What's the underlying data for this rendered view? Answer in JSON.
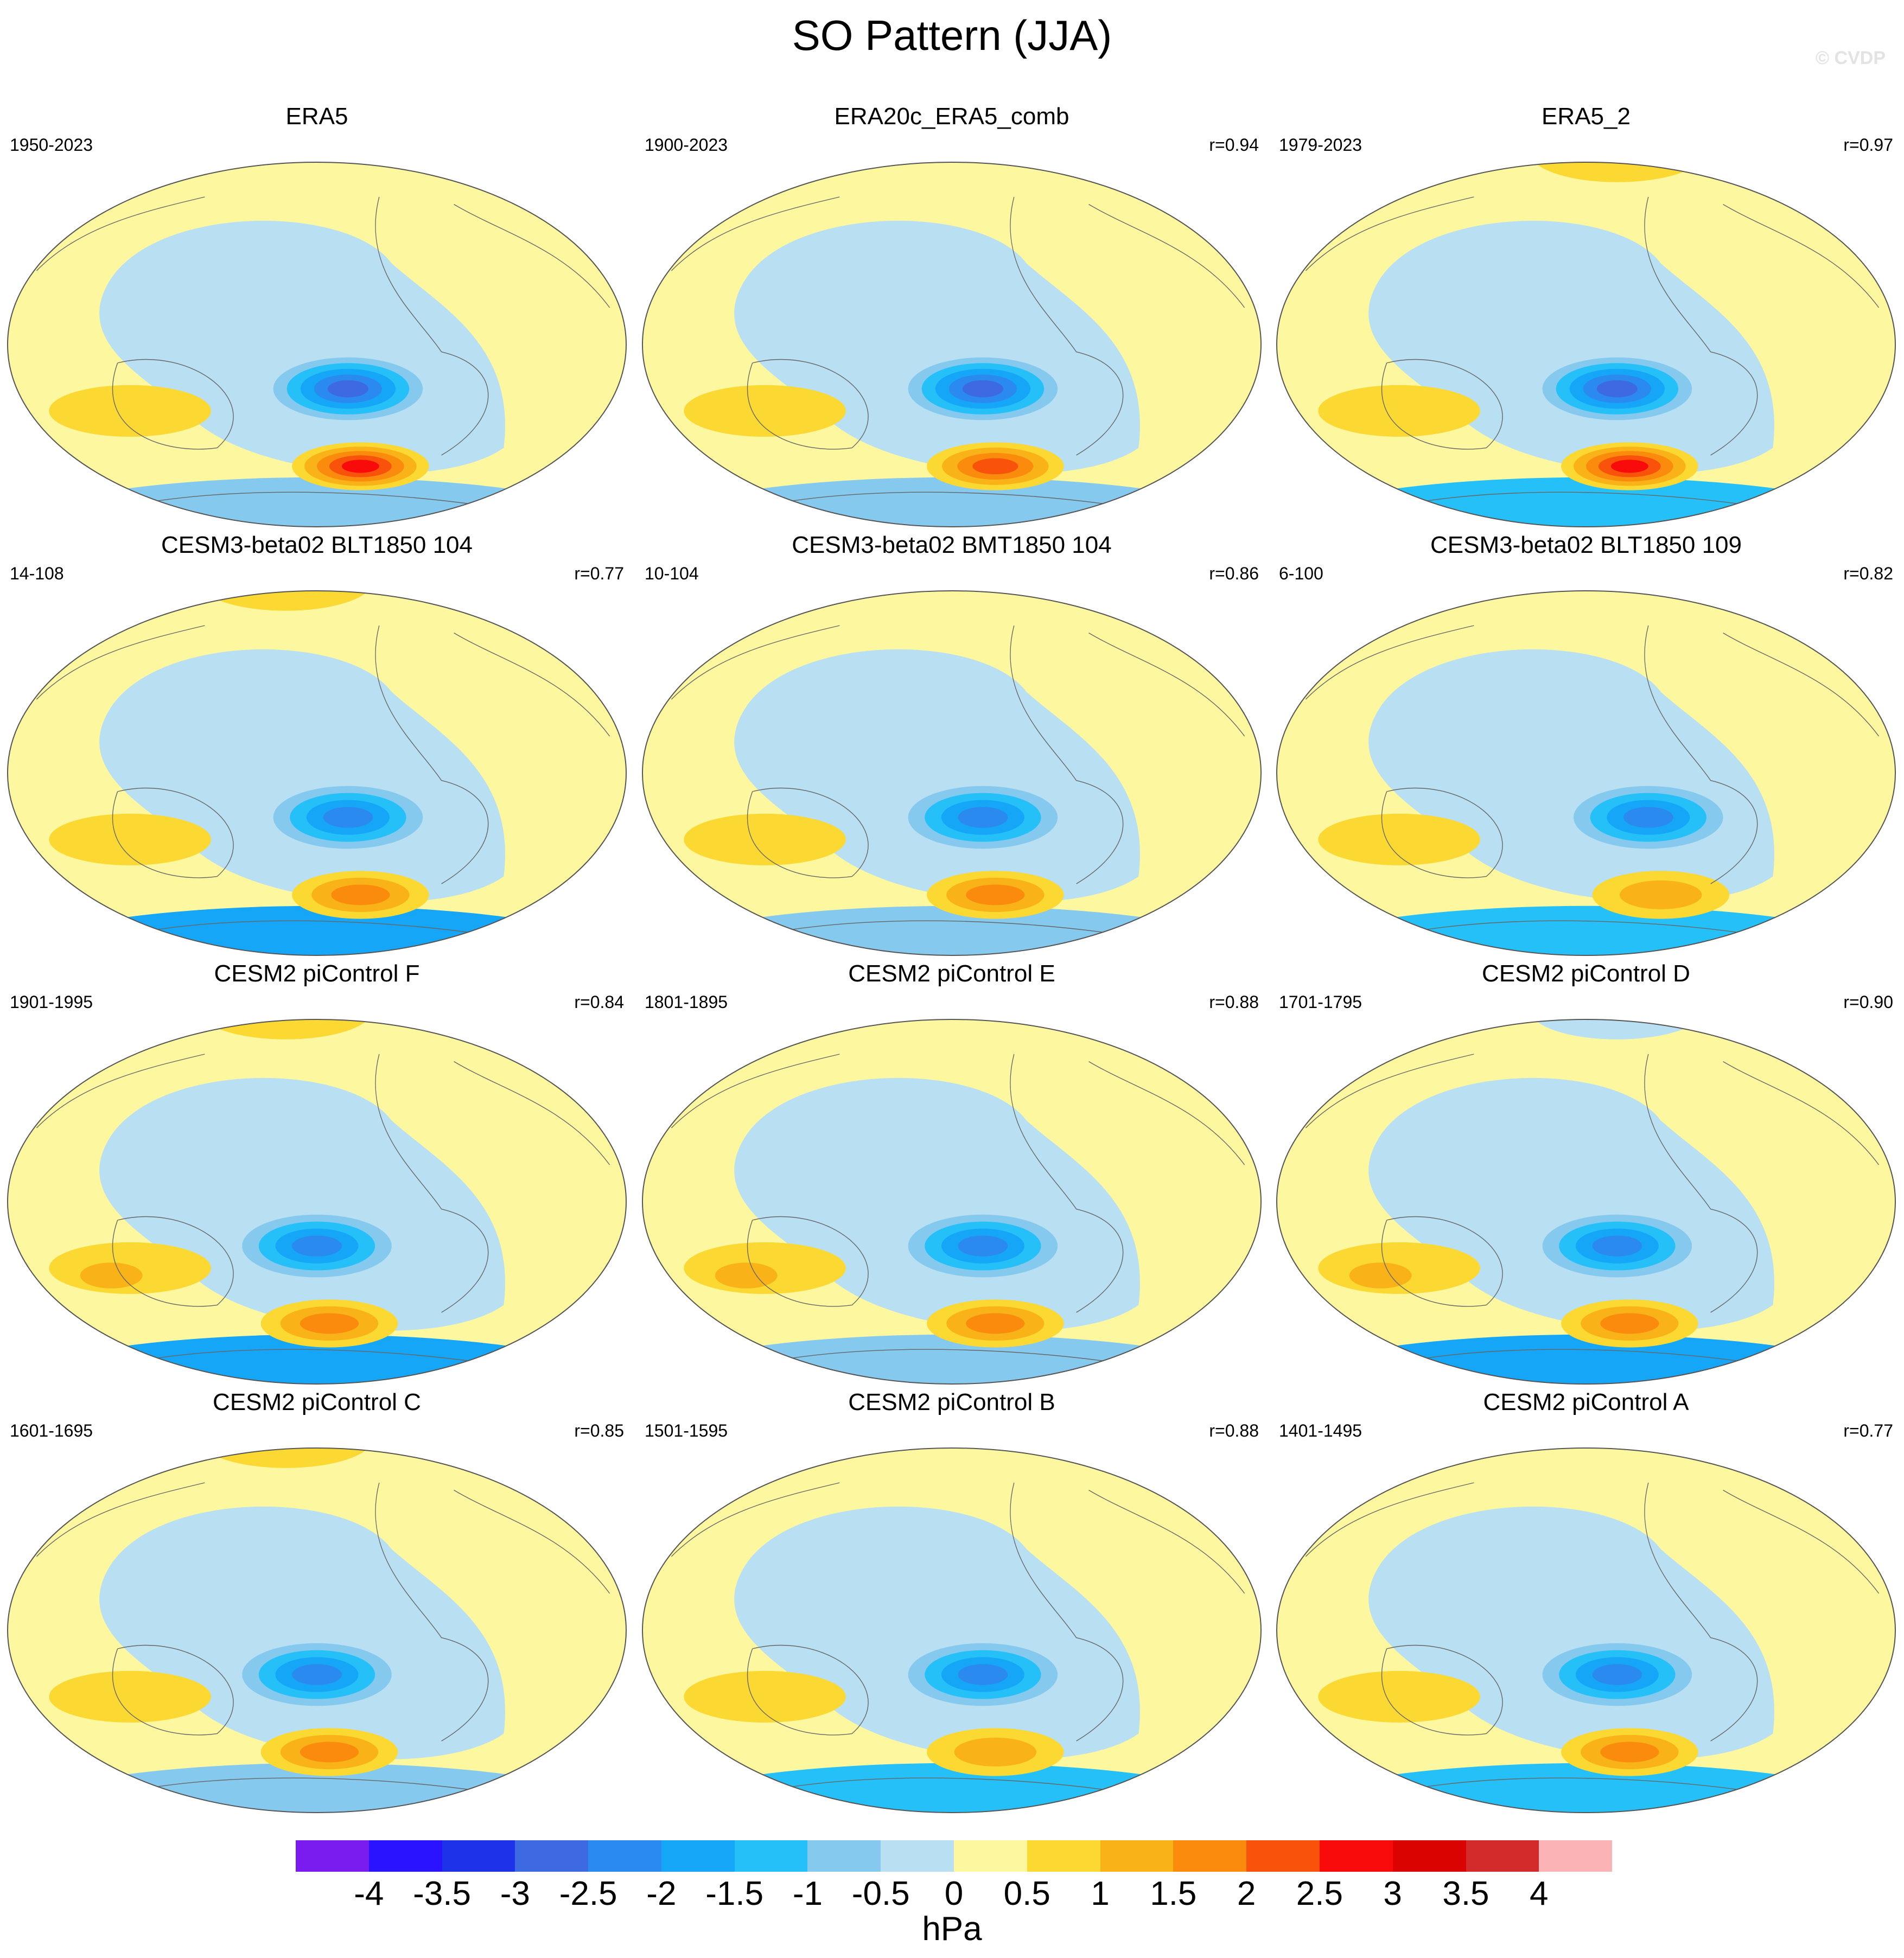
{
  "title": "SO Pattern (JJA)",
  "watermark": "© CVDP",
  "panels": [
    {
      "title": "ERA5",
      "years": "1950-2023",
      "corr": "",
      "pattern": {
        "center": 0.55,
        "neg": 3.0,
        "pos": 2.8,
        "ind": 0.8,
        "ant": -0.6,
        "north": 0.5
      }
    },
    {
      "title": "ERA20c_ERA5_comb",
      "years": "1900-2023",
      "corr": "r=0.94",
      "pattern": {
        "center": 0.55,
        "neg": 3.0,
        "pos": 2.6,
        "ind": 0.8,
        "ant": -0.6,
        "north": 0.2
      }
    },
    {
      "title": "ERA5_2",
      "years": "1979-2023",
      "corr": "r=0.97",
      "pattern": {
        "center": 0.55,
        "neg": 2.9,
        "pos": 3.0,
        "ind": 1.1,
        "ant": -1.3,
        "north": 0.7
      }
    },
    {
      "title": "CESM3-beta02 BLT1850 104",
      "years": "14-108",
      "corr": "r=0.77",
      "pattern": {
        "center": 0.55,
        "neg": 2.7,
        "pos": 1.8,
        "ind": 0.9,
        "ant": -1.5,
        "north": 0.8
      }
    },
    {
      "title": "CESM3-beta02 BMT1850 104",
      "years": "10-104",
      "corr": "r=0.86",
      "pattern": {
        "center": 0.55,
        "neg": 2.6,
        "pos": 1.9,
        "ind": 1.1,
        "ant": -0.9,
        "north": 0.3
      }
    },
    {
      "title": "CESM3-beta02 BLT1850 109",
      "years": "6-100",
      "corr": "r=0.82",
      "pattern": {
        "center": 0.6,
        "neg": 2.4,
        "pos": 1.6,
        "ind": 0.7,
        "ant": -1.0,
        "north": 0.2
      }
    },
    {
      "title": "CESM2 piControl F",
      "years": "1901-1995",
      "corr": "r=0.84",
      "pattern": {
        "center": 0.5,
        "neg": 2.6,
        "pos": 1.9,
        "ind": 1.3,
        "ant": -1.5,
        "north": 0.6
      }
    },
    {
      "title": "CESM2 piControl E",
      "years": "1801-1895",
      "corr": "r=0.88",
      "pattern": {
        "center": 0.55,
        "neg": 2.7,
        "pos": 2.2,
        "ind": 1.2,
        "ant": -0.9,
        "north": 0.4
      }
    },
    {
      "title": "CESM2 piControl D",
      "years": "1701-1795",
      "corr": "r=0.90",
      "pattern": {
        "center": 0.55,
        "neg": 2.5,
        "pos": 2.2,
        "ind": 1.3,
        "ant": -1.5,
        "north": -0.3
      }
    },
    {
      "title": "CESM2 piControl C",
      "years": "1601-1695",
      "corr": "r=0.85",
      "pattern": {
        "center": 0.5,
        "neg": 2.4,
        "pos": 2.2,
        "ind": 0.9,
        "ant": -0.9,
        "north": 0.8
      }
    },
    {
      "title": "CESM2 piControl B",
      "years": "1501-1595",
      "corr": "r=0.88",
      "pattern": {
        "center": 0.55,
        "neg": 2.3,
        "pos": 1.7,
        "ind": 0.9,
        "ant": -1.1,
        "north": 0.3
      }
    },
    {
      "title": "CESM2 piControl A",
      "years": "1401-1495",
      "corr": "r=0.77",
      "pattern": {
        "center": 0.55,
        "neg": 2.4,
        "pos": 1.8,
        "ind": 0.8,
        "ant": -1.0,
        "north": 0.2
      }
    }
  ],
  "colorbar": {
    "units": "hPa",
    "labels": [
      "-4",
      "-3.5",
      "-3",
      "-2.5",
      "-2",
      "-1.5",
      "-1",
      "-0.5",
      "0",
      "0.5",
      "1",
      "1.5",
      "2",
      "2.5",
      "3",
      "3.5",
      "4"
    ],
    "colors": [
      "#7a1cf0",
      "#2a14ff",
      "#1e32e8",
      "#3d6ae0",
      "#2a8af0",
      "#16a6f8",
      "#26c0f8",
      "#86c9ee",
      "#b9dff2",
      "#fdf7a0",
      "#fbd932",
      "#f9b217",
      "#fa8b0d",
      "#f9520a",
      "#fa0b0b",
      "#da0302",
      "#d32b2b",
      "#fcb3b6"
    ]
  }
}
